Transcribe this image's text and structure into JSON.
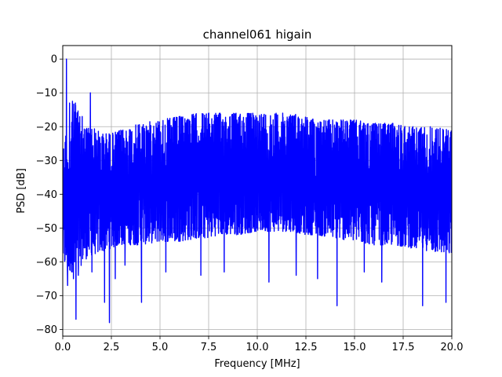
{
  "chart_data": {
    "type": "line",
    "title": "channel061 higain",
    "xlabel": "Frequency [MHz]",
    "ylabel": "PSD [dB]",
    "xlim": [
      0,
      20
    ],
    "ylim": [
      -82,
      4
    ],
    "xticks": [
      0,
      2.5,
      5,
      7.5,
      10,
      12.5,
      15,
      17.5,
      20
    ],
    "xtick_labels": [
      "0.0",
      "2.5",
      "5.0",
      "7.5",
      "10.0",
      "12.5",
      "15.0",
      "17.5",
      "20.0"
    ],
    "yticks": [
      0,
      -10,
      -20,
      -30,
      -40,
      -50,
      -60,
      -70,
      -80
    ],
    "ytick_labels": [
      "0",
      "−10",
      "−20",
      "−30",
      "−40",
      "−50",
      "−60",
      "−70",
      "−80"
    ],
    "grid": true,
    "line_color": "#0000ff",
    "series": [
      {
        "envelope": {
          "x": [
            0,
            0.15,
            0.3,
            0.5,
            0.75,
            1.0,
            1.5,
            2.0,
            2.5,
            3.0,
            4.0,
            5.0,
            6.0,
            7.0,
            7.5,
            8.0,
            9.0,
            10.0,
            11.0,
            11.8,
            12.5,
            13.0,
            14.0,
            15.0,
            16.0,
            17.0,
            18.0,
            19.0,
            20.0
          ],
          "upper": [
            -27,
            -22,
            -28,
            -13,
            -14,
            -20,
            -20,
            -22,
            -22,
            -21,
            -19,
            -18,
            -17,
            -16,
            -16,
            -16,
            -16,
            -16,
            -16,
            -16,
            -17,
            -18,
            -18,
            -18,
            -19,
            -19,
            -20,
            -20,
            -21
          ],
          "lower": [
            -60,
            -62,
            -63,
            -63,
            -65,
            -60,
            -58,
            -57,
            -56,
            -55,
            -55,
            -54,
            -54,
            -53,
            -53,
            -52,
            -52,
            -51,
            -51,
            -51,
            -52,
            -52,
            -53,
            -54,
            -55,
            -55,
            -56,
            -57,
            -58
          ]
        },
        "spikes": [
          {
            "x": 0.19,
            "y": 0
          },
          {
            "x": 0.35,
            "y": -13
          },
          {
            "x": 0.5,
            "y": -12.5
          },
          {
            "x": 0.65,
            "y": -13
          },
          {
            "x": 1.0,
            "y": -17
          },
          {
            "x": 1.42,
            "y": -10
          }
        ],
        "dips": [
          {
            "x": 0.25,
            "y": -67
          },
          {
            "x": 0.55,
            "y": -65
          },
          {
            "x": 0.68,
            "y": -77
          },
          {
            "x": 0.8,
            "y": -64
          },
          {
            "x": 1.5,
            "y": -63
          },
          {
            "x": 2.15,
            "y": -72
          },
          {
            "x": 2.4,
            "y": -78
          },
          {
            "x": 2.7,
            "y": -65
          },
          {
            "x": 3.2,
            "y": -61
          },
          {
            "x": 4.05,
            "y": -72
          },
          {
            "x": 5.3,
            "y": -63
          },
          {
            "x": 7.1,
            "y": -64
          },
          {
            "x": 8.3,
            "y": -63
          },
          {
            "x": 10.6,
            "y": -66
          },
          {
            "x": 12.0,
            "y": -64
          },
          {
            "x": 13.1,
            "y": -65
          },
          {
            "x": 14.1,
            "y": -73
          },
          {
            "x": 15.5,
            "y": -63
          },
          {
            "x": 16.4,
            "y": -66
          },
          {
            "x": 18.5,
            "y": -73
          },
          {
            "x": 19.7,
            "y": -72
          }
        ]
      }
    ]
  }
}
